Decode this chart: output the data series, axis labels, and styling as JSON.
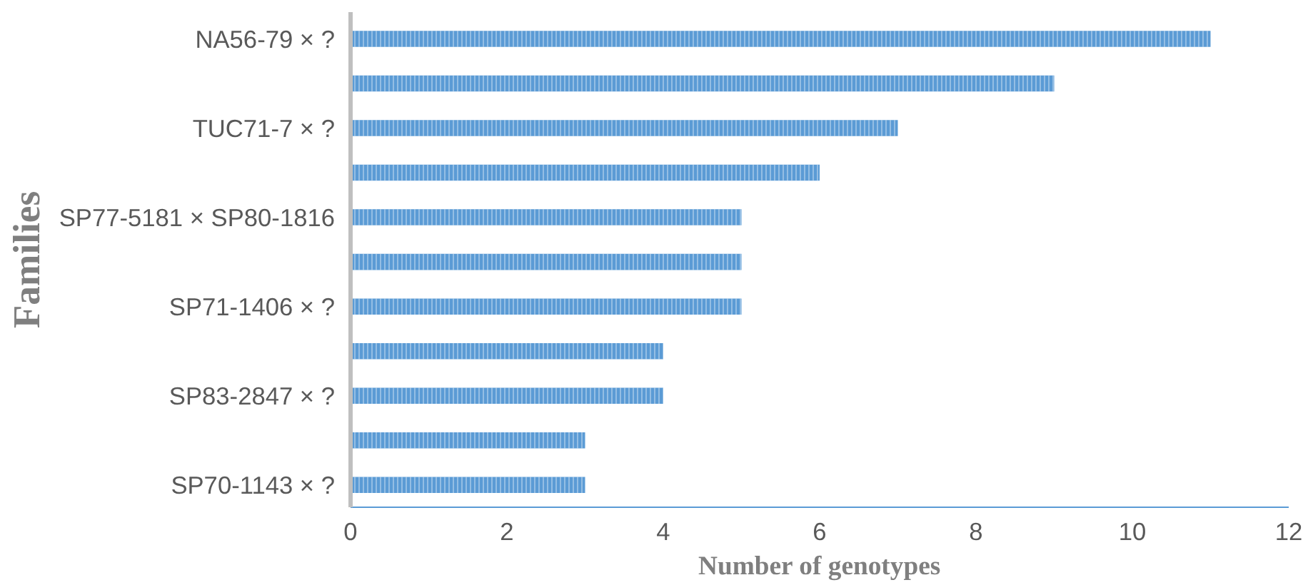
{
  "chart_data": {
    "type": "bar",
    "orientation": "horizontal",
    "xlabel": "Number of genotypes",
    "ylabel": "Families",
    "categories": [
      "NA56-79 × ?",
      null,
      "TUC71-7 × ?",
      null,
      "SP77-5181 × SP80-1816",
      null,
      "SP71-1406 × ?",
      null,
      "SP83-2847 × ?",
      null,
      "SP70-1143 × ?"
    ],
    "values": [
      11,
      9,
      7,
      6,
      5,
      5,
      5,
      4,
      4,
      3,
      3
    ],
    "color": "#5b9bd5",
    "xlim": [
      0,
      12
    ],
    "xticks": [
      0,
      2,
      4,
      6,
      8,
      10,
      12
    ],
    "grid": false
  }
}
